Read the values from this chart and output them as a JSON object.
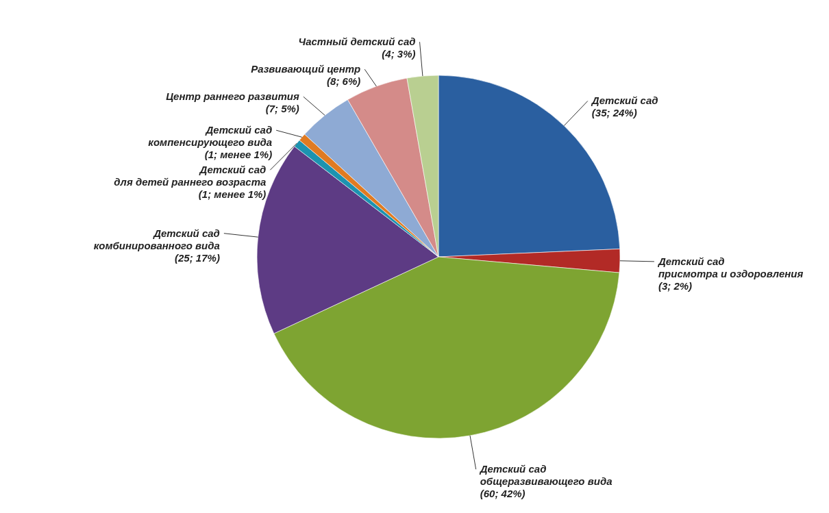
{
  "chart_data": {
    "type": "pie",
    "categories": [
      "Детский сад",
      "Детский сад\nприсмотра и оздоровления",
      "Детский сад\nобщеразвивающего вида",
      "Детский сад\nкомбинированного вида",
      "Детский сад\nдля детей раннего возраста",
      "Детский сад\nкомпенсирующего вида",
      "Центр раннего развития",
      "Развивающий центр",
      "Частный детский сад"
    ],
    "values": [
      35,
      3,
      60,
      25,
      1,
      1,
      7,
      8,
      4
    ],
    "value_labels": [
      "(35; 24%)",
      "(3; 2%)",
      "(60; 42%)",
      "(25; 17%)",
      "(1; менее 1%)",
      "(1; менее 1%)",
      "(7; 5%)",
      "(8; 6%)",
      "(4; 3%)"
    ],
    "colors": [
      "#2a5fa0",
      "#b22a26",
      "#7ea432",
      "#5d3b84",
      "#1d93b0",
      "#e07b22",
      "#8eaad4",
      "#d48b89",
      "#b9cf91"
    ]
  }
}
